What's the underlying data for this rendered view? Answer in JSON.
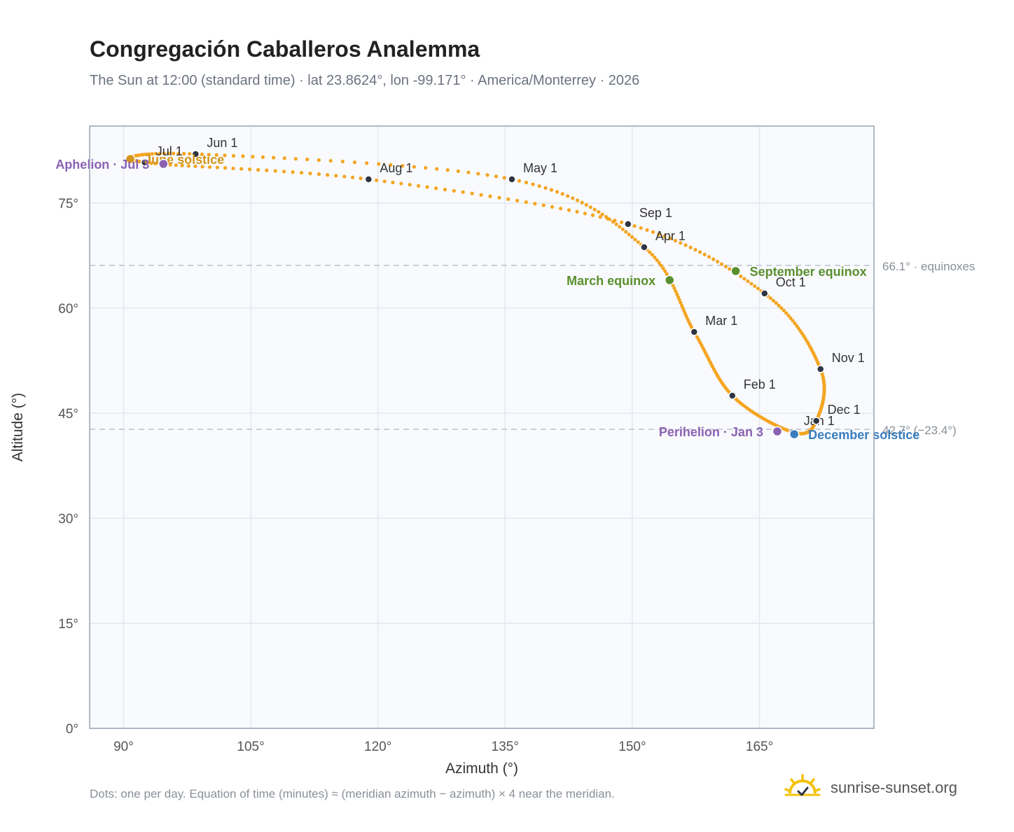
{
  "header": {
    "title": "Congregación Caballeros Analemma",
    "subtitle": "The Sun at 12:00 (standard time) · lat 23.8624°, lon -99.171° · America/Monterrey · 2026"
  },
  "footer": {
    "note": "Dots: one per day. Equation of time (minutes) ≈ (meridian azimuth − azimuth) × 4 near the meridian.",
    "brand": "sunrise-sunset.org"
  },
  "icons": {
    "brand": "sunrise-logo-icon"
  },
  "colors": {
    "curve": "#f4a521",
    "month_dot": "#2f3542",
    "equinox": "#5a8f2e",
    "june_solstice": "#d4951a",
    "december_solstice": "#3a7dbf",
    "apsis": "#8b62b3",
    "reference_line": "#c4c9d0",
    "plot_background": "#f8fafd",
    "grid": "#e3e8ef"
  },
  "chart_data": {
    "type": "scatter",
    "xlabel": "Azimuth (°)",
    "ylabel": "Altitude (°)",
    "xlim": [
      86,
      178.5
    ],
    "ylim": [
      0,
      86
    ],
    "x_ticks": [
      90,
      105,
      120,
      135,
      150,
      165
    ],
    "y_ticks": [
      0,
      15,
      30,
      45,
      60,
      75
    ],
    "x_tick_labels": [
      "90°",
      "105°",
      "120°",
      "135°",
      "150°",
      "165°"
    ],
    "y_tick_labels": [
      "0°",
      "15°",
      "30°",
      "45°",
      "60°",
      "75°"
    ],
    "grid": true,
    "series": [
      {
        "points": [
          {
            "label": "Jan 1",
            "azimuth": 168.9,
            "altitude": 42.3
          },
          {
            "label": "Feb 1",
            "azimuth": 161.8,
            "altitude": 47.5
          },
          {
            "label": "Mar 1",
            "azimuth": 157.3,
            "altitude": 56.6
          },
          {
            "label": "Apr 1",
            "azimuth": 151.4,
            "altitude": 68.7
          },
          {
            "label": "May 1",
            "azimuth": 135.8,
            "altitude": 78.4
          },
          {
            "label": "Jun 1",
            "azimuth": 98.5,
            "altitude": 82.0
          },
          {
            "label": "Jul 1",
            "azimuth": 92.5,
            "altitude": 80.8
          },
          {
            "label": "Aug 1",
            "azimuth": 118.9,
            "altitude": 78.4
          },
          {
            "label": "Sep 1",
            "azimuth": 149.5,
            "altitude": 72.0
          },
          {
            "label": "Oct 1",
            "azimuth": 165.6,
            "altitude": 62.1
          },
          {
            "label": "Nov 1",
            "azimuth": 172.2,
            "altitude": 51.3
          },
          {
            "label": "Dec 1",
            "azimuth": 171.7,
            "altitude": 43.9
          }
        ]
      }
    ],
    "events": [
      {
        "label": "March equinox",
        "azimuth": 154.4,
        "altitude": 64.0
      },
      {
        "label": "June solstice",
        "azimuth": 90.8,
        "altitude": 81.3
      },
      {
        "label": "September equinox",
        "azimuth": 162.2,
        "altitude": 65.3
      },
      {
        "label": "December solstice",
        "azimuth": 169.1,
        "altitude": 42.0
      },
      {
        "label": "Aphelion · Jul 3",
        "azimuth": 94.7,
        "altitude": 80.6
      },
      {
        "label": "Perihelion · Jan 3",
        "azimuth": 167.1,
        "altitude": 42.4
      }
    ],
    "reference_lines": [
      {
        "altitude": 66.1,
        "label": "66.1° · equinoxes"
      },
      {
        "altitude": 42.7,
        "label": "42.7° (−23.4°)"
      }
    ]
  }
}
